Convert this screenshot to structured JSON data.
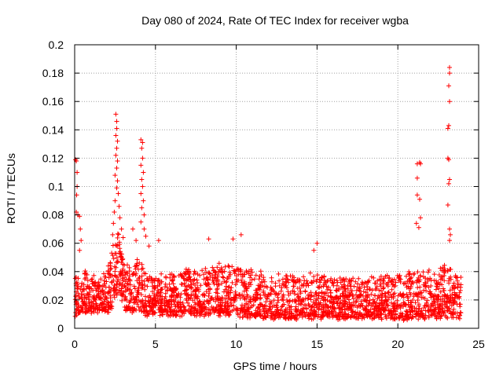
{
  "chart_data": {
    "type": "scatter",
    "title": "Day 080 of 2024, Rate Of TEC Index for receiver wgba",
    "xlabel": "GPS time / hours",
    "ylabel": "ROTI / TECUs",
    "xlim": [
      0,
      25
    ],
    "ylim": [
      0,
      0.2
    ],
    "xticks": [
      0,
      5,
      10,
      15,
      20,
      25
    ],
    "xtick_labels": [
      "0",
      "5",
      "10",
      "15",
      "20",
      "25"
    ],
    "yticks": [
      0,
      0.02,
      0.04,
      0.06,
      0.08,
      0.1,
      0.12,
      0.14,
      0.16,
      0.18,
      0.2
    ],
    "ytick_labels": [
      "0",
      "0.02",
      "0.04",
      "0.06",
      "0.08",
      "0.1",
      "0.12",
      "0.14",
      "0.16",
      "0.18",
      "0.2"
    ],
    "grid": true,
    "marker": "+",
    "color": "#ff0000",
    "series": [
      {
        "name": "ROTI",
        "baseline_envelope": {
          "x": [
            0,
            0.5,
            1,
            1.5,
            2,
            2.3,
            2.5,
            2.7,
            2.9,
            3.1,
            3.5,
            4,
            4.2,
            4.5,
            5,
            6,
            7,
            8,
            9,
            10,
            10.5,
            11,
            12,
            13,
            14,
            15,
            16,
            17,
            18,
            19,
            20,
            21,
            22,
            23,
            24
          ],
          "low": [
            0.008,
            0.01,
            0.01,
            0.01,
            0.01,
            0.012,
            0.02,
            0.025,
            0.02,
            0.012,
            0.01,
            0.01,
            0.01,
            0.008,
            0.008,
            0.008,
            0.008,
            0.008,
            0.008,
            0.008,
            0.006,
            0.006,
            0.006,
            0.006,
            0.006,
            0.006,
            0.006,
            0.006,
            0.006,
            0.006,
            0.005,
            0.006,
            0.006,
            0.006,
            0.006
          ],
          "high": [
            0.04,
            0.045,
            0.04,
            0.038,
            0.045,
            0.06,
            0.08,
            0.075,
            0.06,
            0.05,
            0.045,
            0.055,
            0.05,
            0.04,
            0.04,
            0.04,
            0.045,
            0.048,
            0.05,
            0.05,
            0.045,
            0.045,
            0.04,
            0.04,
            0.04,
            0.042,
            0.038,
            0.038,
            0.038,
            0.04,
            0.04,
            0.045,
            0.045,
            0.05,
            0.04
          ]
        },
        "notable_points": [
          {
            "x": 0.05,
            "y": 0.119
          },
          {
            "x": 0.1,
            "y": 0.118
          },
          {
            "x": 0.15,
            "y": 0.11
          },
          {
            "x": 0.15,
            "y": 0.1
          },
          {
            "x": 0.12,
            "y": 0.094
          },
          {
            "x": 0.1,
            "y": 0.082
          },
          {
            "x": 0.2,
            "y": 0.08
          },
          {
            "x": 0.3,
            "y": 0.079
          },
          {
            "x": 0.35,
            "y": 0.07
          },
          {
            "x": 0.4,
            "y": 0.062
          },
          {
            "x": 0.3,
            "y": 0.055
          },
          {
            "x": 2.55,
            "y": 0.151
          },
          {
            "x": 2.6,
            "y": 0.146
          },
          {
            "x": 2.6,
            "y": 0.141
          },
          {
            "x": 2.55,
            "y": 0.136
          },
          {
            "x": 2.65,
            "y": 0.132
          },
          {
            "x": 2.6,
            "y": 0.127
          },
          {
            "x": 2.55,
            "y": 0.122
          },
          {
            "x": 2.65,
            "y": 0.118
          },
          {
            "x": 2.6,
            "y": 0.113
          },
          {
            "x": 2.5,
            "y": 0.108
          },
          {
            "x": 2.65,
            "y": 0.104
          },
          {
            "x": 2.6,
            "y": 0.099
          },
          {
            "x": 2.7,
            "y": 0.095
          },
          {
            "x": 2.5,
            "y": 0.09
          },
          {
            "x": 2.75,
            "y": 0.086
          },
          {
            "x": 2.45,
            "y": 0.082
          },
          {
            "x": 2.8,
            "y": 0.078
          },
          {
            "x": 2.4,
            "y": 0.074
          },
          {
            "x": 2.9,
            "y": 0.07
          },
          {
            "x": 2.35,
            "y": 0.066
          },
          {
            "x": 3.0,
            "y": 0.064
          },
          {
            "x": 4.1,
            "y": 0.133
          },
          {
            "x": 4.2,
            "y": 0.131
          },
          {
            "x": 4.15,
            "y": 0.127
          },
          {
            "x": 4.2,
            "y": 0.12
          },
          {
            "x": 4.1,
            "y": 0.115
          },
          {
            "x": 4.25,
            "y": 0.11
          },
          {
            "x": 4.15,
            "y": 0.105
          },
          {
            "x": 4.2,
            "y": 0.1
          },
          {
            "x": 4.1,
            "y": 0.095
          },
          {
            "x": 4.25,
            "y": 0.09
          },
          {
            "x": 4.15,
            "y": 0.085
          },
          {
            "x": 4.3,
            "y": 0.08
          },
          {
            "x": 4.1,
            "y": 0.075
          },
          {
            "x": 4.3,
            "y": 0.07
          },
          {
            "x": 4.4,
            "y": 0.065
          },
          {
            "x": 3.6,
            "y": 0.07
          },
          {
            "x": 3.8,
            "y": 0.062
          },
          {
            "x": 4.6,
            "y": 0.058
          },
          {
            "x": 5.2,
            "y": 0.062
          },
          {
            "x": 8.3,
            "y": 0.063
          },
          {
            "x": 9.8,
            "y": 0.063
          },
          {
            "x": 10.3,
            "y": 0.066
          },
          {
            "x": 15.0,
            "y": 0.06
          },
          {
            "x": 14.8,
            "y": 0.055
          },
          {
            "x": 21.2,
            "y": 0.116
          },
          {
            "x": 21.35,
            "y": 0.117
          },
          {
            "x": 21.4,
            "y": 0.116
          },
          {
            "x": 21.2,
            "y": 0.106
          },
          {
            "x": 21.2,
            "y": 0.094
          },
          {
            "x": 21.35,
            "y": 0.091
          },
          {
            "x": 21.4,
            "y": 0.078
          },
          {
            "x": 21.15,
            "y": 0.074
          },
          {
            "x": 21.3,
            "y": 0.071
          },
          {
            "x": 23.2,
            "y": 0.184
          },
          {
            "x": 23.2,
            "y": 0.18
          },
          {
            "x": 23.15,
            "y": 0.171
          },
          {
            "x": 23.2,
            "y": 0.16
          },
          {
            "x": 23.15,
            "y": 0.143
          },
          {
            "x": 23.1,
            "y": 0.141
          },
          {
            "x": 23.1,
            "y": 0.12
          },
          {
            "x": 23.15,
            "y": 0.119
          },
          {
            "x": 23.2,
            "y": 0.105
          },
          {
            "x": 23.15,
            "y": 0.102
          },
          {
            "x": 23.1,
            "y": 0.087
          },
          {
            "x": 23.2,
            "y": 0.07
          },
          {
            "x": 23.25,
            "y": 0.066
          },
          {
            "x": 23.2,
            "y": 0.062
          }
        ]
      }
    ]
  }
}
